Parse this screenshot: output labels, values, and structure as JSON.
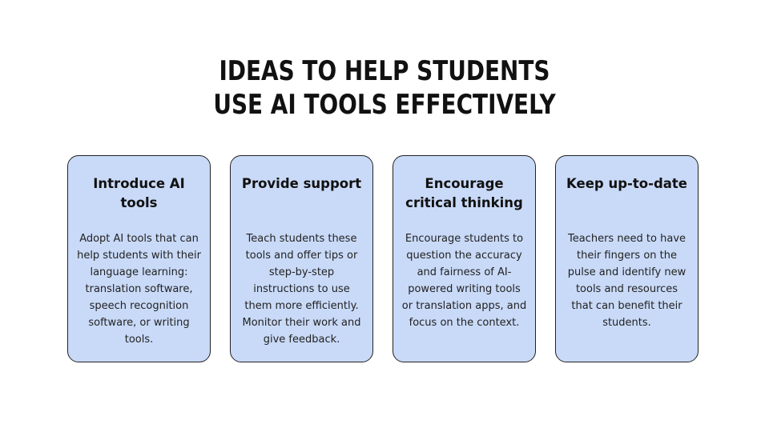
{
  "title": {
    "line1": "IDEAS TO HELP STUDENTS",
    "line2": "USE AI TOOLS EFFECTIVELY"
  },
  "cards": [
    {
      "title": "Introduce AI tools",
      "body": "Adopt AI tools that can help students with their language learning: translation software, speech recognition software, or writing tools."
    },
    {
      "title": "Provide support",
      "body": "Teach students these tools and offer tips or step-by-step instructions to use them more efficiently. Monitor their work and give feedback."
    },
    {
      "title": "Encourage critical thinking",
      "body": "Encourage students to question the accuracy and fairness of AI-powered writing tools or translation apps, and focus on the context."
    },
    {
      "title": "Keep up-to-date",
      "body": "Teachers need to have their fingers on the pulse and identify new tools and resources that can benefit their students."
    }
  ],
  "colors": {
    "card_fill": "#c9daf8",
    "card_border": "#222222",
    "text": "#111111"
  }
}
